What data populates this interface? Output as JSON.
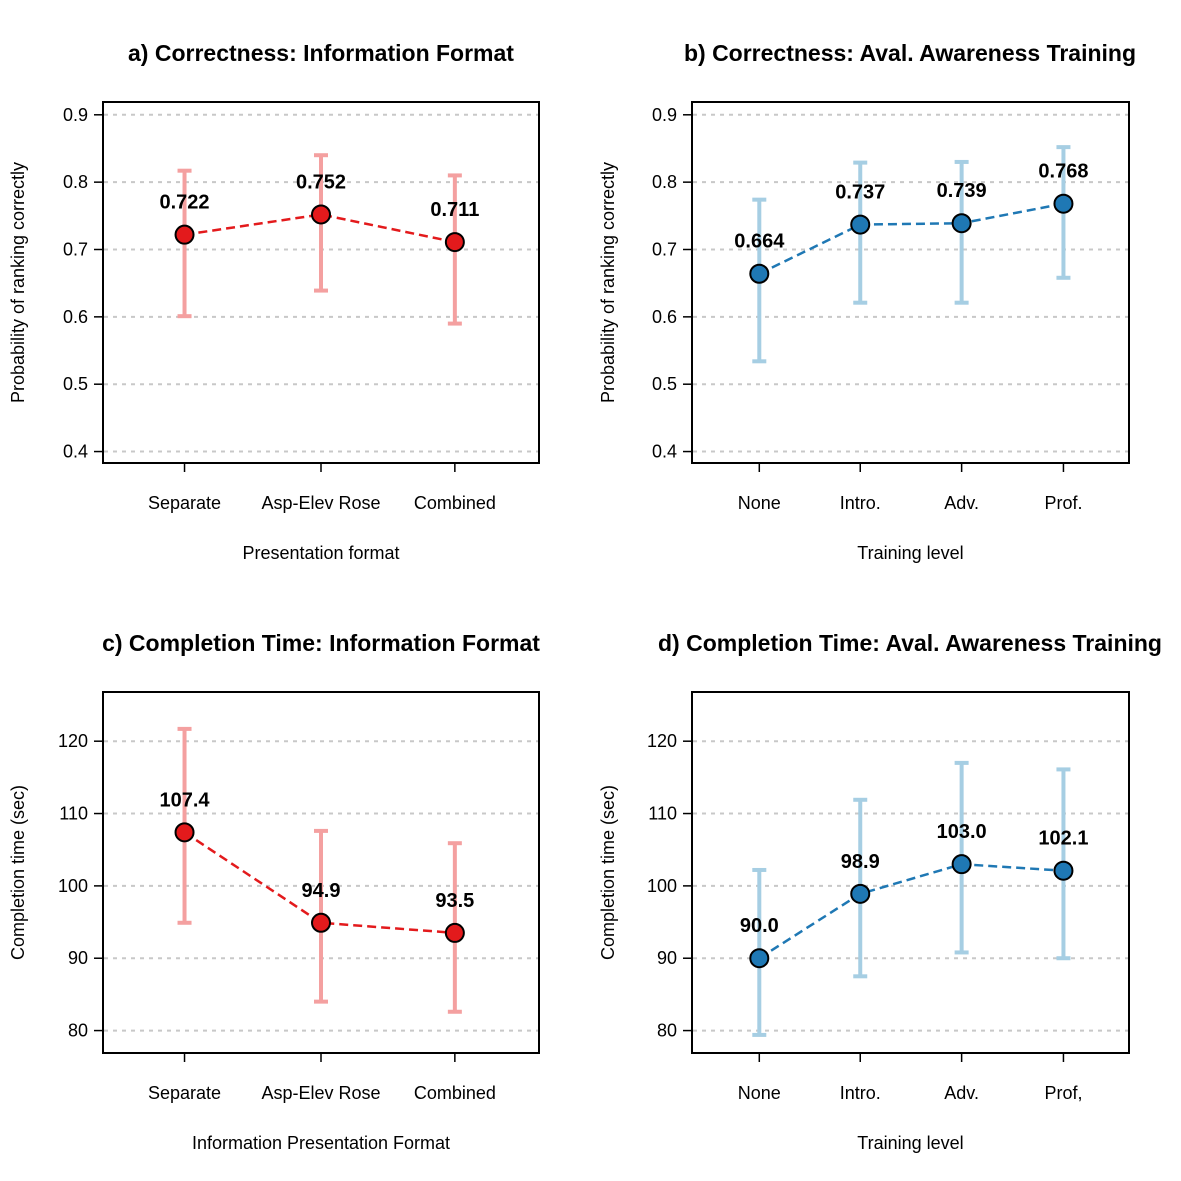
{
  "chart_data": [
    {
      "type": "line",
      "title": "a) Correctness: Information Format",
      "xlabel": "Presentation format",
      "ylabel": "Probability of ranking correctly",
      "categories": [
        "Separate",
        "Asp-Elev Rose",
        "Combined"
      ],
      "values": [
        0.722,
        0.752,
        0.711
      ],
      "value_labels": [
        "0.722",
        "0.752",
        "0.711"
      ],
      "lower": [
        0.601,
        0.639,
        0.59
      ],
      "upper": [
        0.817,
        0.84,
        0.81
      ],
      "ylim": [
        0.383,
        0.919
      ],
      "yticks": [
        0.4,
        0.5,
        0.6,
        0.7,
        0.8,
        0.9
      ],
      "ytick_labels": [
        "0.4",
        "0.5",
        "0.6",
        "0.7",
        "0.8",
        "0.9"
      ],
      "grid": true,
      "point_color": "#E31A1C",
      "line_color": "#E31A1C",
      "errorbar_color": "#F4A0A0"
    },
    {
      "type": "line",
      "title": "b) Correctness: Aval. Awareness Training",
      "xlabel": "Training level",
      "ylabel": "Probability of ranking correctly",
      "categories": [
        "None",
        "Intro.",
        "Adv.",
        "Prof."
      ],
      "values": [
        0.664,
        0.737,
        0.739,
        0.768
      ],
      "value_labels": [
        "0.664",
        "0.737",
        "0.739",
        "0.768"
      ],
      "lower": [
        0.534,
        0.621,
        0.621,
        0.658
      ],
      "upper": [
        0.774,
        0.829,
        0.83,
        0.852
      ],
      "ylim": [
        0.383,
        0.919
      ],
      "yticks": [
        0.4,
        0.5,
        0.6,
        0.7,
        0.8,
        0.9
      ],
      "ytick_labels": [
        "0.4",
        "0.5",
        "0.6",
        "0.7",
        "0.8",
        "0.9"
      ],
      "grid": true,
      "point_color": "#1F78B4",
      "line_color": "#1F78B4",
      "errorbar_color": "#A6CEE3"
    },
    {
      "type": "line",
      "title": "c) Completion Time: Information Format",
      "xlabel": "Information Presentation Format",
      "ylabel": "Completion time (sec)",
      "categories": [
        "Separate",
        "Asp-Elev Rose",
        "Combined"
      ],
      "values": [
        107.4,
        94.9,
        93.5
      ],
      "value_labels": [
        "107.4",
        "94.9",
        "93.5"
      ],
      "lower": [
        94.9,
        84.0,
        82.6
      ],
      "upper": [
        121.7,
        107.6,
        105.9
      ],
      "ylim": [
        76.9,
        126.8
      ],
      "yticks": [
        80,
        90,
        100,
        110,
        120
      ],
      "ytick_labels": [
        "80",
        "90",
        "100",
        "110",
        "120"
      ],
      "grid": true,
      "point_color": "#E31A1C",
      "line_color": "#E31A1C",
      "errorbar_color": "#F4A0A0"
    },
    {
      "type": "line",
      "title": "d) Completion Time: Aval. Awareness Training",
      "xlabel": "Training level",
      "ylabel": "Completion time (sec)",
      "categories": [
        "None",
        "Intro.",
        "Adv.",
        "Prof,"
      ],
      "values": [
        90.0,
        98.9,
        103.0,
        102.1
      ],
      "value_labels": [
        "90.0",
        "98.9",
        "103.0",
        "102.1"
      ],
      "lower": [
        79.4,
        87.5,
        90.8,
        90.0
      ],
      "upper": [
        102.2,
        111.9,
        117.0,
        116.1
      ],
      "ylim": [
        76.9,
        126.8
      ],
      "yticks": [
        80,
        90,
        100,
        110,
        120
      ],
      "ytick_labels": [
        "80",
        "90",
        "100",
        "110",
        "120"
      ],
      "grid": true,
      "point_color": "#1F78B4",
      "line_color": "#1F78B4",
      "errorbar_color": "#A6CEE3"
    }
  ]
}
